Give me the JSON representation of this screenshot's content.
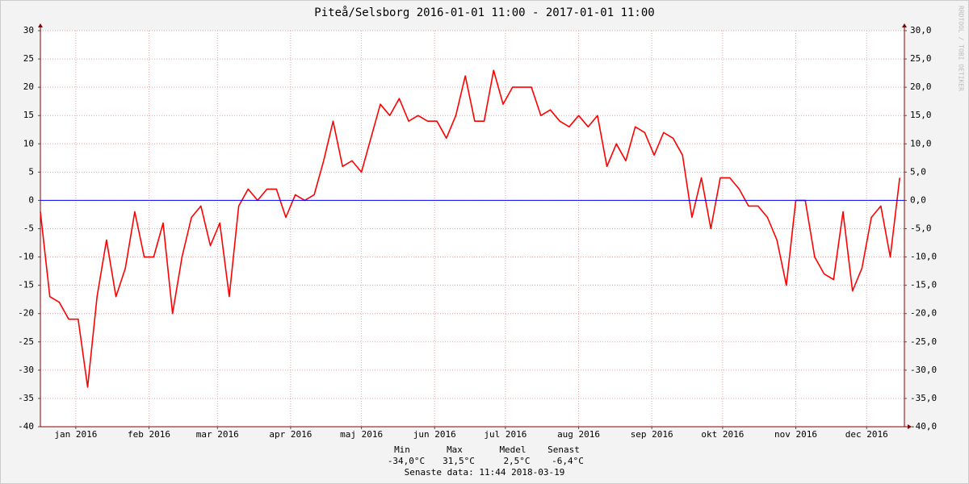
{
  "chart_data": {
    "type": "line",
    "title": "Piteå/Selsborg 2016-01-01 11:00 - 2017-01-01 11:00",
    "color": "#ff0000",
    "x": [
      0,
      4,
      8,
      12,
      16,
      20,
      24,
      28,
      32,
      36,
      40,
      44,
      48,
      52,
      56,
      60,
      64,
      68,
      72,
      76,
      80,
      84,
      88,
      92,
      96,
      100,
      104,
      108,
      112,
      116,
      120,
      124,
      128,
      132,
      136,
      140,
      144,
      148,
      152,
      156,
      160,
      164,
      168,
      172,
      176,
      180,
      184,
      188,
      192,
      196,
      200,
      204,
      208,
      212,
      216,
      220,
      224,
      228,
      232,
      236,
      240,
      244,
      248,
      252,
      256,
      260,
      264,
      268,
      272,
      276,
      280,
      284,
      288,
      292,
      296,
      300,
      304,
      308,
      312,
      316,
      320,
      324,
      328,
      332,
      336,
      340,
      344,
      348,
      352,
      356,
      360,
      364
    ],
    "values": [
      -2,
      -17,
      -18,
      -21,
      -21,
      -33,
      -17,
      -7,
      -17,
      -12,
      -2,
      -10,
      -10,
      -4,
      -20,
      -10,
      -3,
      -1,
      -8,
      -4,
      -17,
      -1,
      2,
      0,
      2,
      2,
      -3,
      1,
      0,
      1,
      7,
      14,
      6,
      7,
      5,
      11,
      17,
      15,
      18,
      14,
      15,
      14,
      14,
      11,
      15,
      22,
      14,
      14,
      23,
      17,
      20,
      20,
      20,
      15,
      16,
      14,
      13,
      15,
      13,
      15,
      6,
      10,
      7,
      13,
      12,
      8,
      12,
      11,
      8,
      -3,
      4,
      -5,
      4,
      4,
      2,
      -1,
      -1,
      -3,
      -7,
      -15,
      0,
      0,
      -10,
      -13,
      -14,
      -2,
      -16,
      -12,
      -3,
      -1,
      -10,
      4
    ],
    "xlim": [
      0,
      366
    ],
    "xticks": [
      {
        "value": 15,
        "label": "jan 2016"
      },
      {
        "value": 46,
        "label": "feb 2016"
      },
      {
        "value": 75,
        "label": "mar 2016"
      },
      {
        "value": 106,
        "label": "apr 2016"
      },
      {
        "value": 136,
        "label": "maj 2016"
      },
      {
        "value": 167,
        "label": "jun 2016"
      },
      {
        "value": 197,
        "label": "jul 2016"
      },
      {
        "value": 228,
        "label": "aug 2016"
      },
      {
        "value": 259,
        "label": "sep 2016"
      },
      {
        "value": 289,
        "label": "okt 2016"
      },
      {
        "value": 320,
        "label": "nov 2016"
      },
      {
        "value": 350,
        "label": "dec 2016"
      }
    ],
    "ylim": [
      -40,
      30
    ],
    "yticks": [
      -40,
      -35,
      -30,
      -25,
      -20,
      -15,
      -10,
      -5,
      0,
      5,
      10,
      15,
      20,
      25,
      30
    ],
    "y2lim": [
      -40,
      30
    ],
    "y2ticks": [
      {
        "value": -40,
        "label": "-40,0"
      },
      {
        "value": -35,
        "label": "-35,0"
      },
      {
        "value": -30,
        "label": "-30,0"
      },
      {
        "value": -25,
        "label": "-25,0"
      },
      {
        "value": -20,
        "label": "-20,0"
      },
      {
        "value": -15,
        "label": "-15,0"
      },
      {
        "value": -10,
        "label": "-10,0"
      },
      {
        "value": -5,
        "label": "-5,0"
      },
      {
        "value": 0,
        "label": "0,0"
      },
      {
        "value": 5,
        "label": "5,0"
      },
      {
        "value": 10,
        "label": "10,0"
      },
      {
        "value": 15,
        "label": "15,0"
      },
      {
        "value": 20,
        "label": "20,0"
      },
      {
        "value": 25,
        "label": "25,0"
      },
      {
        "value": 30,
        "label": "30,0"
      }
    ],
    "grid": true,
    "zero_line": {
      "value": 0,
      "color": "#0000ff"
    },
    "stats": {
      "headers": [
        "Min",
        "Max",
        "Medel",
        "Senast"
      ],
      "values": [
        "-34,0°C",
        "31,5°C",
        "2,5°C",
        "-6,4°C"
      ]
    },
    "footer": "Senaste data: 11:44 2018-03-19",
    "watermark": "RRDTOOL / TOBI OETIKER"
  }
}
